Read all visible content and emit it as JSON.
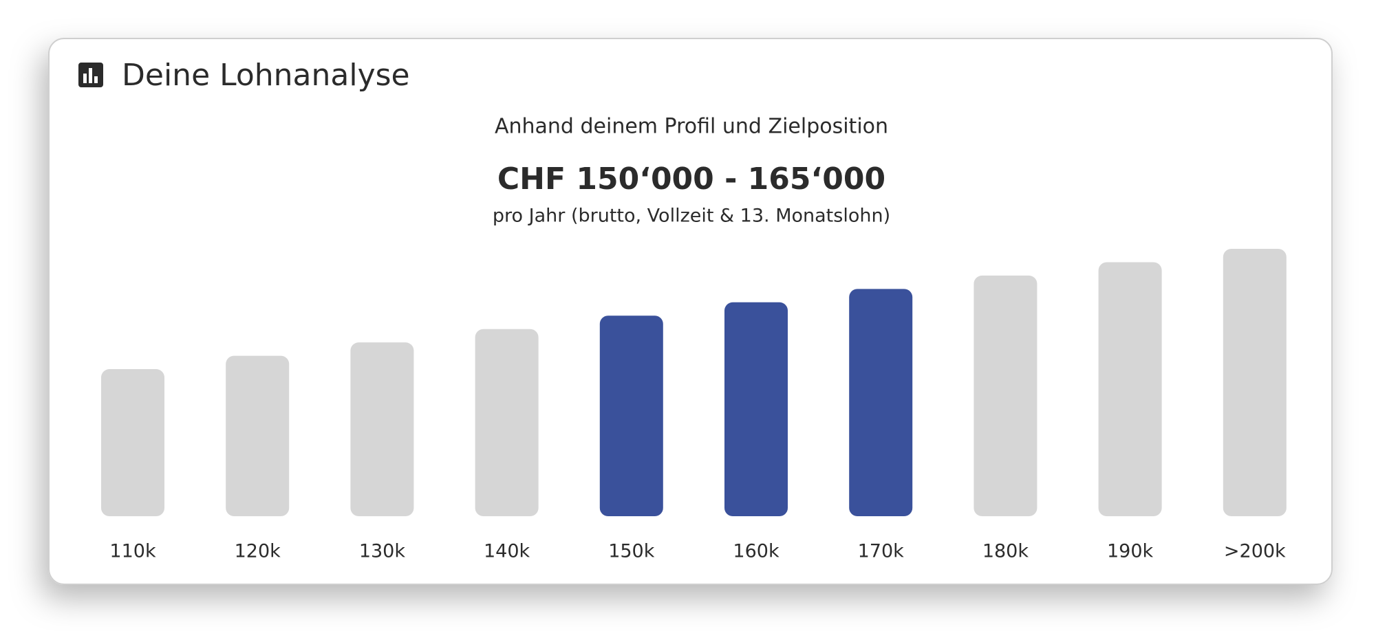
{
  "chart_data": {
    "type": "bar",
    "title": "Deine Lohnanalyse",
    "subtitle": "Anhand deinem Profil und Zielposition",
    "range": "CHF 150‘000 - 165‘000",
    "note": "pro Jahr (brutto, Vollzeit & 13. Monatslohn)",
    "categories": [
      "110k",
      "120k",
      "130k",
      "140k",
      "150k",
      "160k",
      "170k",
      "180k",
      "190k",
      ">200k"
    ],
    "values": [
      55,
      60,
      65,
      70,
      75,
      80,
      85,
      90,
      95,
      100
    ],
    "colors": [
      "#d6d6d6",
      "#d6d6d6",
      "#d6d6d6",
      "#d6d6d6",
      "#3a519b",
      "#3a519b",
      "#3a519b",
      "#d6d6d6",
      "#d6d6d6",
      "#d6d6d6"
    ],
    "ylim": [
      0,
      100
    ]
  }
}
